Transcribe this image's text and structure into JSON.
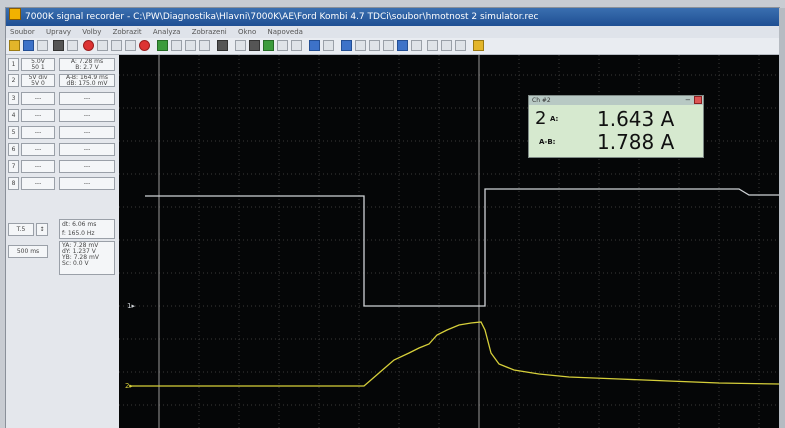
{
  "window": {
    "title": "7000K signal recorder - C:\\PW\\Diagnostika\\Hlavni\\7000K\\AE\\Ford Kombi 4.7 TDCi\\soubor\\hmotnost 2 simulator.rec",
    "menu": [
      "Soubor",
      "Upravy",
      "Volby",
      "Zobrazit",
      "Analyza",
      "Zobrazeni",
      "Okno",
      "Napoveda"
    ]
  },
  "left_panel": {
    "channels": [
      {
        "id": "1",
        "setting": "5.0V",
        "range": "50 1"
      },
      {
        "id": "2",
        "setting": "5V div",
        "range": "5V 0"
      },
      {
        "id": "3",
        "setting": "---",
        "range": "---"
      },
      {
        "id": "4",
        "setting": "---",
        "range": "---"
      },
      {
        "id": "5",
        "setting": "---",
        "range": "---"
      },
      {
        "id": "6",
        "setting": "---",
        "range": "---"
      },
      {
        "id": "7",
        "setting": "---",
        "range": "---"
      },
      {
        "id": "8",
        "setting": "---",
        "range": "---"
      }
    ],
    "cursor_readouts": [
      "A: 7.28 ms",
      "B: 2.7 V",
      "A-B: 164.9 ms",
      "dB: 175.0 mV"
    ],
    "trigger": "T.5",
    "timebase": "500 ms",
    "bottom_readouts": [
      "dt: 6.06 ms",
      "f: 165.0 Hz",
      "YA: 7.28 mV",
      "dY: 1.237 V",
      "YB: 7.28 mV",
      "Sc: 0.0 V"
    ]
  },
  "scope": {
    "colors": {
      "grid": "#3a3a3a",
      "ch1": "#cfd2d6",
      "ch2": "#d6cf3a",
      "cursor": "#9a9a9a"
    },
    "ch1_marker": "1▸",
    "ch2_marker": "2▸"
  },
  "measurement": {
    "title": "Ch #2",
    "channel": "2",
    "label_a": "A:",
    "value_a": "1.643 A",
    "label_ab": "A-B:",
    "value_ab": "1.788 A"
  }
}
